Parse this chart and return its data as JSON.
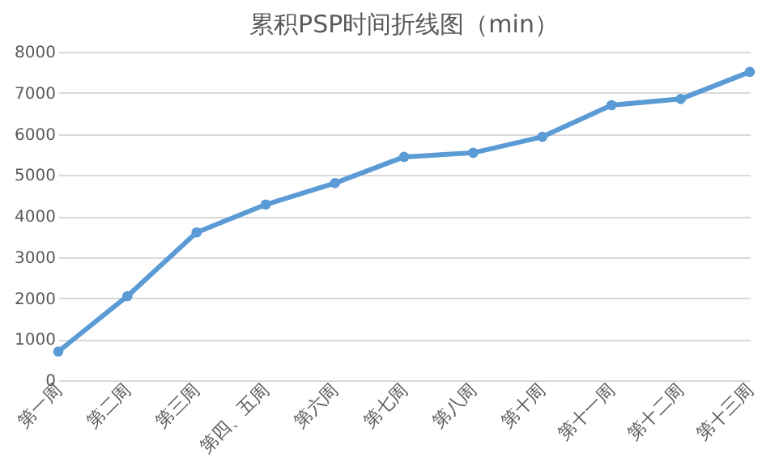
{
  "chart_data": {
    "type": "line",
    "title": "累积PSP时间折线图（min）",
    "categories": [
      "第一周",
      "第二周",
      "第三周",
      "第四、五周",
      "第六周",
      "第七周",
      "第八周",
      "第十周",
      "第十一周",
      "第十二周",
      "第十三周"
    ],
    "series": [
      {
        "color": "#5b9bd5",
        "values": [
          700,
          2050,
          3600,
          4280,
          4800,
          5440,
          5540,
          5930,
          6700,
          6850,
          7510
        ]
      }
    ],
    "ylim": [
      0,
      8000
    ],
    "yticks": [
      0,
      1000,
      2000,
      3000,
      4000,
      5000,
      6000,
      7000,
      8000
    ],
    "grid": "y",
    "marker": "circle",
    "line_style": "solid",
    "legend": false
  }
}
